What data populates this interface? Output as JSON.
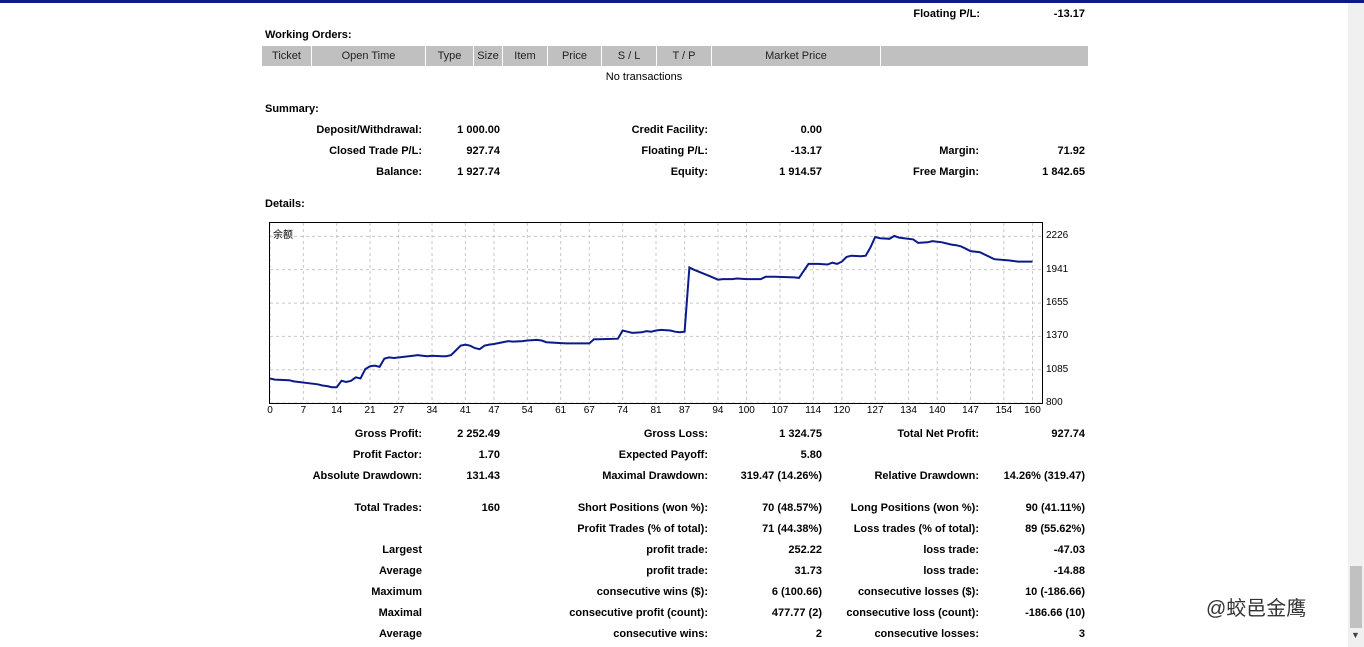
{
  "top": {
    "floating_label": "Floating P/L:",
    "floating_value": "-13.17"
  },
  "working_orders": {
    "title": "Working Orders:",
    "columns": [
      "Ticket",
      "Open Time",
      "Type",
      "Size",
      "Item",
      "Price",
      "S / L",
      "T / P",
      "Market Price",
      ""
    ],
    "empty_text": "No transactions"
  },
  "summary": {
    "title": "Summary:",
    "deposit_label": "Deposit/Withdrawal:",
    "deposit_value": "1 000.00",
    "credit_label": "Credit Facility:",
    "credit_value": "0.00",
    "closed_label": "Closed Trade P/L:",
    "closed_value": "927.74",
    "floating_label": "Floating P/L:",
    "floating_value": "-13.17",
    "margin_label": "Margin:",
    "margin_value": "71.92",
    "balance_label": "Balance:",
    "balance_value": "1 927.74",
    "equity_label": "Equity:",
    "equity_value": "1 914.57",
    "free_margin_label": "Free Margin:",
    "free_margin_value": "1 842.65"
  },
  "details": {
    "title": "Details:",
    "rows": [
      [
        [
          "Gross Profit:",
          "2 252.49"
        ],
        [
          "Gross Loss:",
          "1 324.75"
        ],
        [
          "Total Net Profit:",
          "927.74"
        ]
      ],
      [
        [
          "Profit Factor:",
          "1.70"
        ],
        [
          "Expected Payoff:",
          "5.80"
        ],
        [
          "",
          ""
        ]
      ],
      [
        [
          "Absolute Drawdown:",
          "131.43"
        ],
        [
          "Maximal Drawdown:",
          "319.47 (14.26%)"
        ],
        [
          "Relative Drawdown:",
          "14.26% (319.47)"
        ]
      ],
      [
        [
          "Total Trades:",
          "160"
        ],
        [
          "Short Positions (won %):",
          "70 (48.57%)"
        ],
        [
          "Long Positions (won %):",
          "90 (41.11%)"
        ]
      ],
      [
        [
          "",
          ""
        ],
        [
          "Profit Trades (% of total):",
          "71 (44.38%)"
        ],
        [
          "Loss trades (% of total):",
          "89 (55.62%)"
        ]
      ],
      [
        [
          "Largest",
          ""
        ],
        [
          "profit trade:",
          "252.22"
        ],
        [
          "loss trade:",
          "-47.03"
        ]
      ],
      [
        [
          "Average",
          ""
        ],
        [
          "profit trade:",
          "31.73"
        ],
        [
          "loss trade:",
          "-14.88"
        ]
      ],
      [
        [
          "Maximum",
          ""
        ],
        [
          "consecutive wins ($):",
          "6 (100.66)"
        ],
        [
          "consecutive losses ($):",
          "10 (-186.66)"
        ]
      ],
      [
        [
          "Maximal",
          ""
        ],
        [
          "consecutive profit (count):",
          "477.77 (2)"
        ],
        [
          "consecutive loss (count):",
          "-186.66 (10)"
        ]
      ],
      [
        [
          "Average",
          ""
        ],
        [
          "consecutive wins:",
          "2"
        ],
        [
          "consecutive losses:",
          "3"
        ]
      ]
    ]
  },
  "watermark": "@蛟邑金鹰",
  "chart_data": {
    "type": "line",
    "title": "余额",
    "xlabel": "",
    "ylabel": "",
    "xlim": [
      0,
      162
    ],
    "ylim": [
      800,
      2340
    ],
    "x_ticks": [
      0,
      7,
      14,
      21,
      27,
      34,
      41,
      47,
      54,
      61,
      67,
      74,
      81,
      87,
      94,
      100,
      107,
      114,
      120,
      127,
      134,
      140,
      147,
      154,
      160
    ],
    "y_ticks": [
      800,
      1085,
      1370,
      1655,
      1941,
      2226
    ],
    "grid": true,
    "color": "#0b1a8a",
    "series": [
      {
        "name": "",
        "x": [
          0,
          1,
          4,
          5,
          10,
          11,
          12,
          13,
          14,
          15,
          16,
          17,
          18,
          19,
          20,
          21,
          22,
          23,
          24,
          25,
          26,
          30,
          31,
          32,
          33,
          34,
          36,
          37,
          38,
          39,
          40,
          41,
          42,
          43,
          44,
          45,
          46,
          47,
          50,
          51,
          53,
          54,
          56,
          57,
          58,
          62,
          63,
          66,
          67,
          68,
          69,
          73,
          74,
          75,
          76,
          78,
          79,
          80,
          81,
          82,
          84,
          85,
          86,
          87,
          88,
          89,
          92,
          94,
          95,
          97,
          98,
          100,
          103,
          104,
          106,
          110,
          111,
          112,
          113,
          115,
          117,
          118,
          119,
          120,
          121,
          122,
          124,
          125,
          126,
          127,
          128,
          130,
          131,
          132,
          133,
          135,
          136,
          138,
          139,
          141,
          143,
          144,
          145,
          146,
          147,
          149,
          150,
          152,
          155,
          156,
          157,
          158,
          159,
          160
        ],
        "y": [
          1010,
          1000,
          995,
          985,
          960,
          950,
          945,
          935,
          935,
          990,
          980,
          990,
          1020,
          1010,
          1090,
          1115,
          1120,
          1110,
          1180,
          1190,
          1185,
          1205,
          1210,
          1205,
          1200,
          1205,
          1200,
          1200,
          1210,
          1250,
          1290,
          1300,
          1290,
          1270,
          1260,
          1290,
          1300,
          1305,
          1330,
          1325,
          1330,
          1335,
          1340,
          1335,
          1320,
          1310,
          1310,
          1310,
          1310,
          1345,
          1345,
          1350,
          1420,
          1410,
          1400,
          1405,
          1415,
          1410,
          1420,
          1425,
          1420,
          1410,
          1405,
          1410,
          1960,
          1940,
          1890,
          1855,
          1860,
          1860,
          1865,
          1860,
          1860,
          1880,
          1880,
          1875,
          1870,
          1930,
          1990,
          1990,
          1985,
          2000,
          1990,
          2010,
          2050,
          2060,
          2055,
          2060,
          2130,
          2220,
          2210,
          2205,
          2230,
          2215,
          2210,
          2200,
          2170,
          2175,
          2185,
          2175,
          2155,
          2150,
          2140,
          2120,
          2100,
          2090,
          2070,
          2030,
          2020,
          2015,
          2010,
          2010,
          2010,
          2010
        ]
      }
    ]
  }
}
